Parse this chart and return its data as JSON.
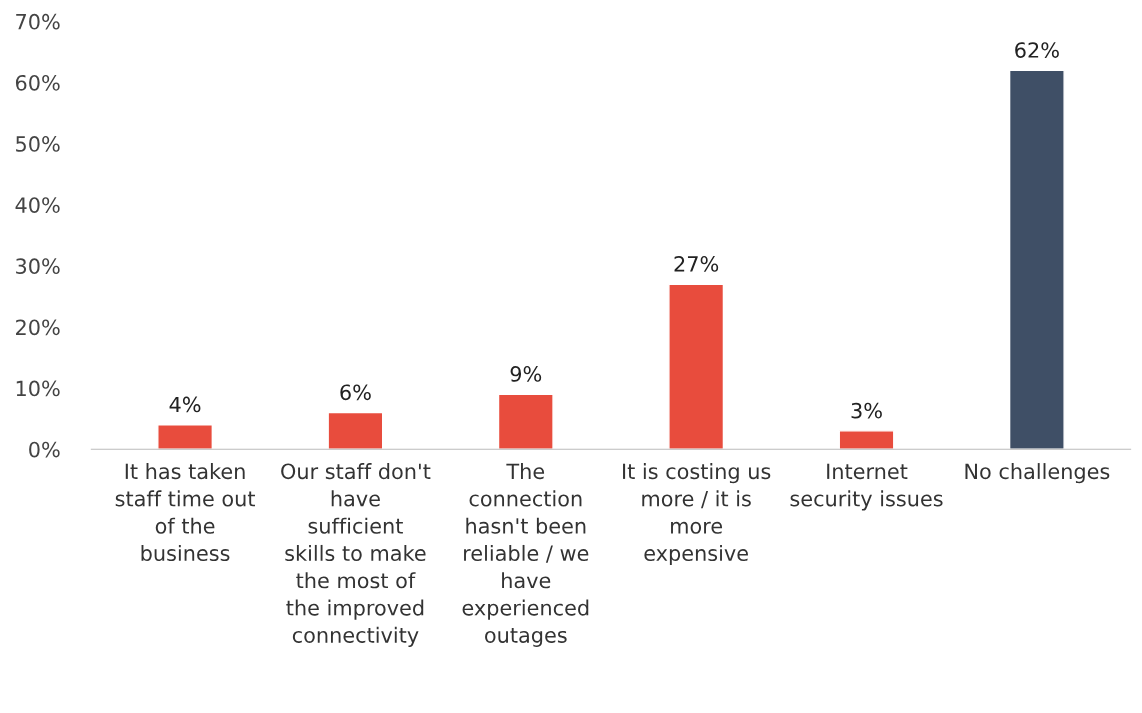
{
  "chart_data": {
    "type": "bar",
    "categories": [
      "It has taken\nstaff time out\nof the\nbusiness",
      "Our staff don't\nhave\nsufficient\nskills to make\nthe most of\nthe improved\nconnectivity",
      "The\nconnection\nhasn't been\nreliable / we\nhave\nexperienced\noutages",
      "It is costing us\nmore / it is\nmore\nexpensive",
      "Internet\nsecurity issues",
      "No challenges"
    ],
    "values": [
      4,
      6,
      9,
      27,
      3,
      62
    ],
    "colors": [
      "#e84c3d",
      "#e84c3d",
      "#e84c3d",
      "#e84c3d",
      "#e84c3d",
      "#3f4f66"
    ],
    "value_labels": [
      "4%",
      "6%",
      "9%",
      "27%",
      "3%",
      "62%"
    ],
    "ylim": [
      0,
      70
    ],
    "yticks": [
      {
        "value": 0,
        "label": "0%"
      },
      {
        "value": 10,
        "label": "10%"
      },
      {
        "value": 20,
        "label": "20%"
      },
      {
        "value": 30,
        "label": "30%"
      },
      {
        "value": 40,
        "label": "40%"
      },
      {
        "value": 50,
        "label": "50%"
      },
      {
        "value": 60,
        "label": "60%"
      },
      {
        "value": 70,
        "label": "70%"
      }
    ],
    "grid": false,
    "legend": false
  }
}
